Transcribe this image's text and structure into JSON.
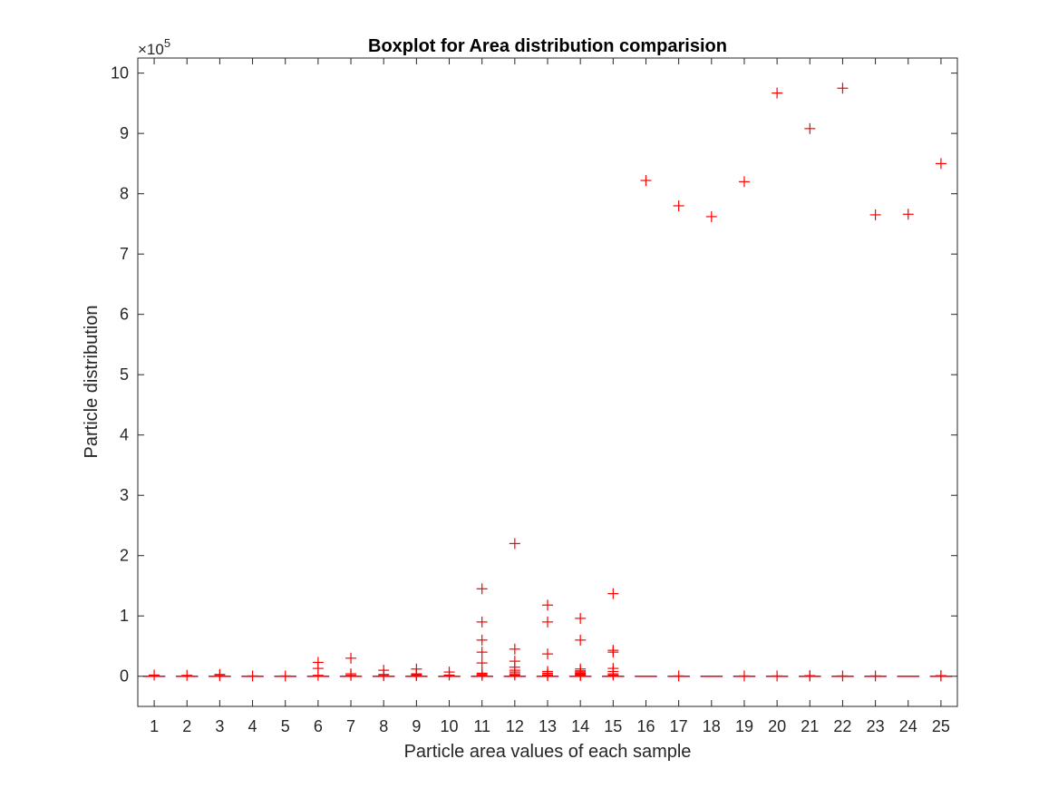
{
  "chart_data": {
    "type": "boxplot",
    "title": "Boxplot for Area distribution comparision",
    "xlabel": "Particle area values of each sample",
    "ylabel": "Particle distribution",
    "y_exponent_label": "×10",
    "y_exponent_power": "5",
    "categories": [
      "1",
      "2",
      "3",
      "4",
      "5",
      "6",
      "7",
      "8",
      "9",
      "10",
      "11",
      "12",
      "13",
      "14",
      "15",
      "16",
      "17",
      "18",
      "19",
      "20",
      "21",
      "22",
      "23",
      "24",
      "25"
    ],
    "ylim": [
      -50000,
      1025000
    ],
    "yticks": [
      0,
      100000,
      200000,
      300000,
      400000,
      500000,
      600000,
      700000,
      800000,
      900000,
      1000000
    ],
    "ytick_labels": [
      "0",
      "1",
      "2",
      "3",
      "4",
      "5",
      "6",
      "7",
      "8",
      "9",
      "10"
    ],
    "grid": false,
    "box_color": "#0000ff",
    "median_color": "#ff0000",
    "outlier_color": "#ff0000",
    "outlier_marker": "+",
    "boxes": [
      {
        "category": "1",
        "q1": 0,
        "median": 0,
        "q3": 0,
        "whisker_low": 0,
        "whisker_high": 0
      },
      {
        "category": "2",
        "q1": 0,
        "median": 0,
        "q3": 0,
        "whisker_low": 0,
        "whisker_high": 0
      },
      {
        "category": "3",
        "q1": 0,
        "median": 0,
        "q3": 0,
        "whisker_low": 0,
        "whisker_high": 0
      },
      {
        "category": "4",
        "q1": 0,
        "median": 0,
        "q3": 0,
        "whisker_low": 0,
        "whisker_high": 0
      },
      {
        "category": "5",
        "q1": 0,
        "median": 0,
        "q3": 0,
        "whisker_low": 0,
        "whisker_high": 0
      },
      {
        "category": "6",
        "q1": 0,
        "median": 0,
        "q3": 0,
        "whisker_low": 0,
        "whisker_high": 0
      },
      {
        "category": "7",
        "q1": 0,
        "median": 0,
        "q3": 0,
        "whisker_low": 0,
        "whisker_high": 0
      },
      {
        "category": "8",
        "q1": 0,
        "median": 0,
        "q3": 0,
        "whisker_low": 0,
        "whisker_high": 0
      },
      {
        "category": "9",
        "q1": 0,
        "median": 0,
        "q3": 0,
        "whisker_low": 0,
        "whisker_high": 0
      },
      {
        "category": "10",
        "q1": 0,
        "median": 0,
        "q3": 0,
        "whisker_low": 0,
        "whisker_high": 0
      },
      {
        "category": "11",
        "q1": 0,
        "median": 0,
        "q3": 0,
        "whisker_low": 0,
        "whisker_high": 0
      },
      {
        "category": "12",
        "q1": 0,
        "median": 0,
        "q3": 0,
        "whisker_low": 0,
        "whisker_high": 0
      },
      {
        "category": "13",
        "q1": 0,
        "median": 0,
        "q3": 0,
        "whisker_low": 0,
        "whisker_high": 0
      },
      {
        "category": "14",
        "q1": 0,
        "median": 0,
        "q3": 0,
        "whisker_low": 0,
        "whisker_high": 0
      },
      {
        "category": "15",
        "q1": 0,
        "median": 0,
        "q3": 0,
        "whisker_low": 0,
        "whisker_high": 0
      },
      {
        "category": "16",
        "q1": 0,
        "median": 0,
        "q3": 0,
        "whisker_low": 0,
        "whisker_high": 0
      },
      {
        "category": "17",
        "q1": 0,
        "median": 0,
        "q3": 0,
        "whisker_low": 0,
        "whisker_high": 0
      },
      {
        "category": "18",
        "q1": 0,
        "median": 0,
        "q3": 0,
        "whisker_low": 0,
        "whisker_high": 0
      },
      {
        "category": "19",
        "q1": 0,
        "median": 0,
        "q3": 0,
        "whisker_low": 0,
        "whisker_high": 0
      },
      {
        "category": "20",
        "q1": 0,
        "median": 0,
        "q3": 0,
        "whisker_low": 0,
        "whisker_high": 0
      },
      {
        "category": "21",
        "q1": 0,
        "median": 0,
        "q3": 0,
        "whisker_low": 0,
        "whisker_high": 0
      },
      {
        "category": "22",
        "q1": 0,
        "median": 0,
        "q3": 0,
        "whisker_low": 0,
        "whisker_high": 0
      },
      {
        "category": "23",
        "q1": 0,
        "median": 0,
        "q3": 0,
        "whisker_low": 0,
        "whisker_high": 0
      },
      {
        "category": "24",
        "q1": 0,
        "median": 0,
        "q3": 0,
        "whisker_low": 0,
        "whisker_high": 0
      },
      {
        "category": "25",
        "q1": 0,
        "median": 0,
        "q3": 0,
        "whisker_low": 0,
        "whisker_high": 0
      }
    ],
    "outliers": [
      {
        "category": "1",
        "values": [
          2000
        ]
      },
      {
        "category": "2",
        "values": [
          1500
        ]
      },
      {
        "category": "3",
        "values": [
          3000,
          1000
        ]
      },
      {
        "category": "4",
        "values": [
          500
        ]
      },
      {
        "category": "5",
        "values": [
          500
        ]
      },
      {
        "category": "6",
        "values": [
          23000,
          13000,
          1500
        ]
      },
      {
        "category": "7",
        "values": [
          30000,
          4000,
          1500
        ]
      },
      {
        "category": "8",
        "values": [
          10000,
          3000,
          1000
        ]
      },
      {
        "category": "9",
        "values": [
          12000,
          4000,
          2500,
          1000
        ]
      },
      {
        "category": "10",
        "values": [
          7000,
          2000
        ]
      },
      {
        "category": "11",
        "values": [
          145000,
          90000,
          60000,
          40000,
          22000,
          5000,
          3000,
          1500
        ]
      },
      {
        "category": "12",
        "values": [
          220000,
          45000,
          25000,
          15000,
          10000,
          7000,
          4000,
          2000
        ]
      },
      {
        "category": "13",
        "values": [
          118000,
          90000,
          37000,
          8000,
          5000,
          2500,
          1000
        ]
      },
      {
        "category": "14",
        "values": [
          96000,
          60000,
          12000,
          9000,
          7000,
          5000,
          3500,
          2000,
          1000
        ]
      },
      {
        "category": "15",
        "values": [
          137000,
          43000,
          40000,
          13000,
          8000,
          4000,
          2000
        ]
      },
      {
        "category": "16",
        "values": [
          822000
        ]
      },
      {
        "category": "17",
        "values": [
          780000,
          500
        ]
      },
      {
        "category": "18",
        "values": [
          762000
        ]
      },
      {
        "category": "19",
        "values": [
          820000,
          500
        ]
      },
      {
        "category": "20",
        "values": [
          967000,
          500
        ]
      },
      {
        "category": "21",
        "values": [
          908000,
          1000,
          500
        ]
      },
      {
        "category": "22",
        "values": [
          975000,
          500
        ]
      },
      {
        "category": "23",
        "values": [
          765000,
          500
        ]
      },
      {
        "category": "24",
        "values": [
          766000
        ]
      },
      {
        "category": "25",
        "values": [
          850000,
          1000,
          500
        ]
      }
    ]
  }
}
